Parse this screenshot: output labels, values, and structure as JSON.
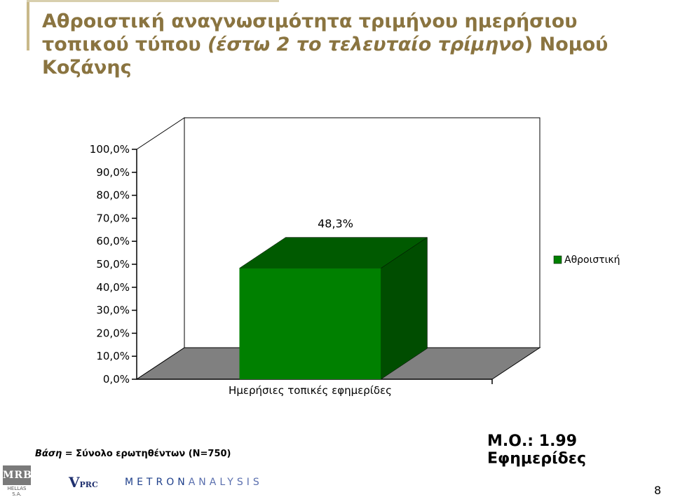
{
  "title": {
    "part1": "Αθροιστική αναγνωσιμότητα τριμήνου ημερήσιου τοπικού τύπου ",
    "italic": "(έστω 2 το τελευταίο τρίμηνο",
    "part2": ") Νομού Κοζάνης"
  },
  "chart_data": {
    "type": "bar",
    "categories": [
      "Ημερήσιες τοπικές εφημερίδες"
    ],
    "series": [
      {
        "name": "Αθροιστική",
        "values": [
          48.3
        ],
        "color": "#008000",
        "side_color": "#004d00",
        "top_color": "#005a00"
      }
    ],
    "data_labels": [
      "48,3%"
    ],
    "ylim": [
      0,
      100
    ],
    "yticks": [
      0,
      10,
      20,
      30,
      40,
      50,
      60,
      70,
      80,
      90,
      100
    ],
    "ytick_labels": [
      "0,0%",
      "10,0%",
      "20,0%",
      "30,0%",
      "40,0%",
      "50,0%",
      "60,0%",
      "70,0%",
      "80,0%",
      "90,0%",
      "100,0%"
    ],
    "legend_position": "right",
    "floor_color": "#808080",
    "grid": false
  },
  "notes": {
    "base_label": "Βάση",
    "base_text": " = Σύνολο ερωτηθέντων (Ν=750)",
    "mean": "Μ.Ο.: 1.99 Εφημερίδες"
  },
  "logos": {
    "mrb": "MRB",
    "mrb_sub": "HELLAS S.A.",
    "vprc_v": "V",
    "vprc_rest": "PRC",
    "metron_a": "METRON",
    "metron_b": "ANALYSIS"
  },
  "page_number": "8"
}
